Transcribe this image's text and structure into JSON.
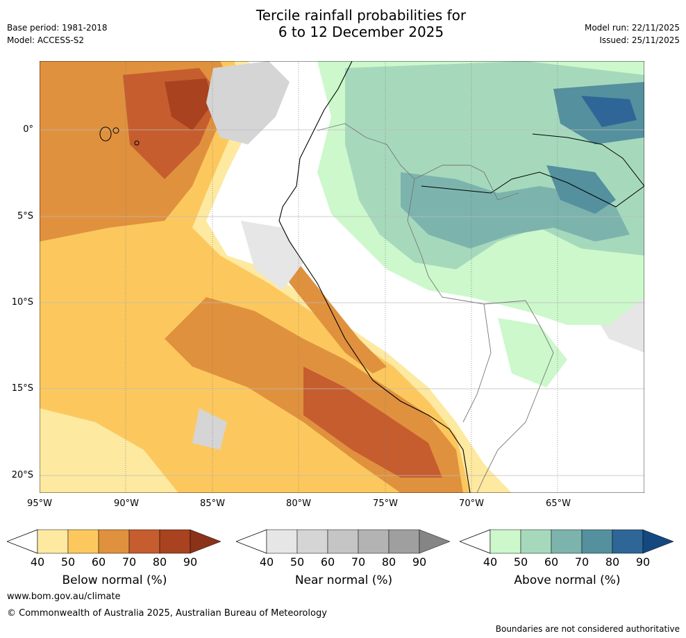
{
  "header": {
    "title_line1": "Tercile rainfall probabilities for",
    "title_line2": "6 to 12 December 2025",
    "base_period": "Base period: 1981-2018",
    "model": "Model: ACCESS-S2",
    "model_run": "Model run: 22/11/2025",
    "issued": "Issued: 25/11/2025"
  },
  "map": {
    "lat_labels": [
      "0°",
      "5°S",
      "10°S",
      "15°S",
      "20°S"
    ],
    "lon_labels": [
      "95°W",
      "90°W",
      "85°W",
      "80°W",
      "75°W",
      "70°W",
      "65°W"
    ]
  },
  "legends": [
    {
      "title": "Below normal (%)",
      "ticks": [
        "40",
        "50",
        "60",
        "70",
        "80",
        "90"
      ],
      "colors": [
        "#fde9a0",
        "#fcc85e",
        "#e0913e",
        "#c65d2f",
        "#a8421f",
        "#8a3318"
      ]
    },
    {
      "title": "Near normal (%)",
      "ticks": [
        "40",
        "50",
        "60",
        "70",
        "80",
        "90"
      ],
      "colors": [
        "#e6e6e6",
        "#d5d5d5",
        "#c5c5c5",
        "#b3b3b3",
        "#9f9f9f",
        "#858585"
      ]
    },
    {
      "title": "Above normal (%)",
      "ticks": [
        "40",
        "50",
        "60",
        "70",
        "80",
        "90"
      ],
      "colors": [
        "#ccf8cc",
        "#a6d9bc",
        "#7cb4ad",
        "#54909e",
        "#2e6697",
        "#14487f"
      ]
    }
  ],
  "footer": {
    "website": "www.bom.gov.au/climate",
    "copyright": "© Commonwealth of Australia 2025, Australian Bureau of Meteorology",
    "disclaimer": "Boundaries are not considered authoritative"
  }
}
